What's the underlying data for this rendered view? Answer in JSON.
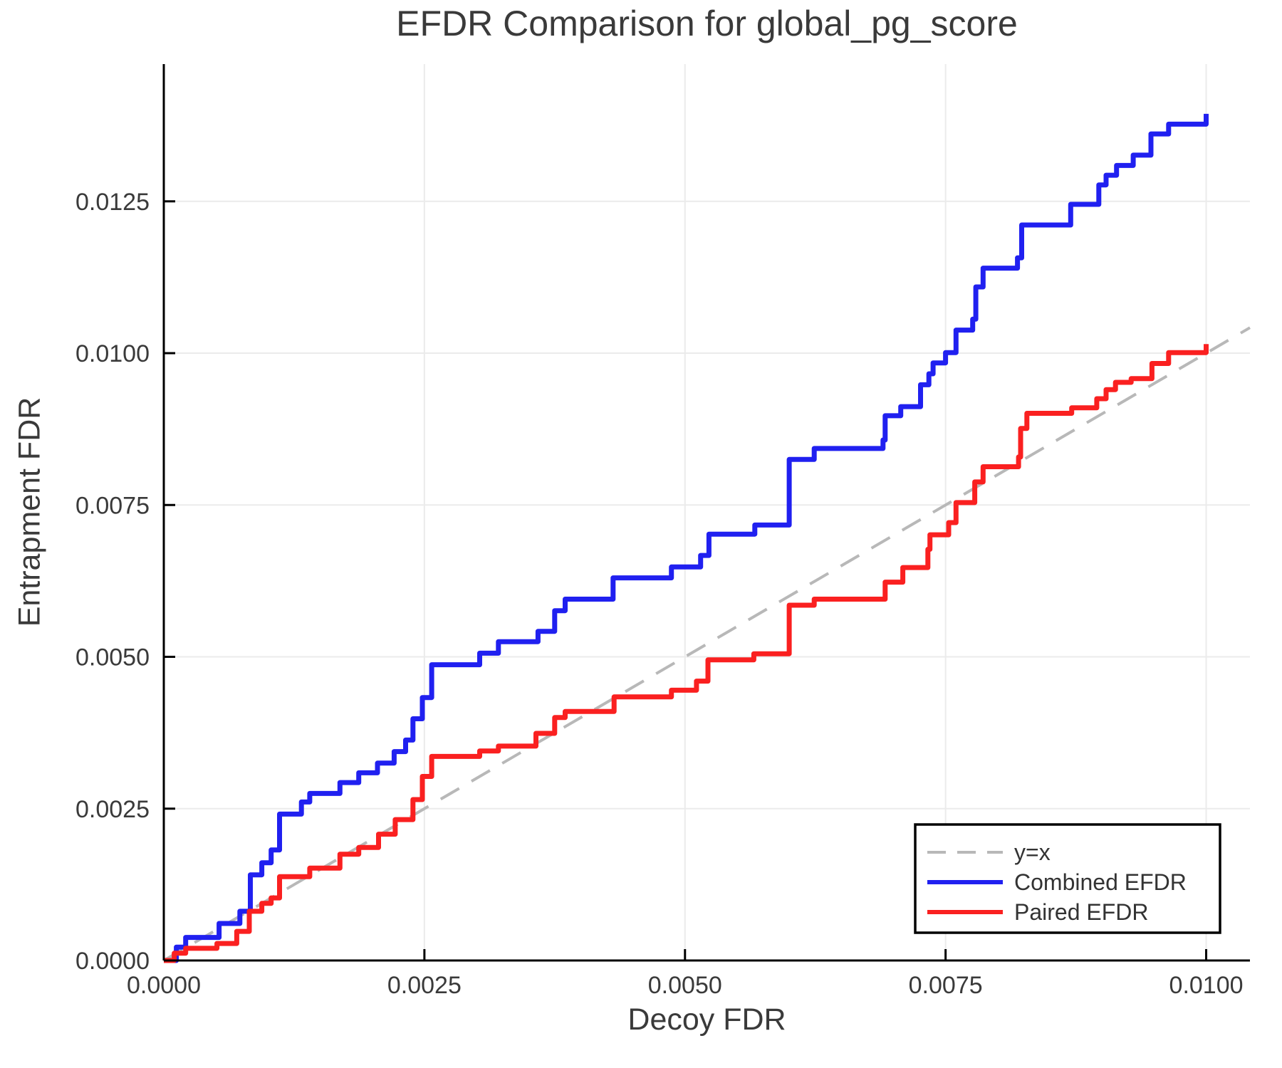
{
  "chart_data": {
    "type": "line",
    "title": "EFDR Comparison for global_pg_score",
    "xlabel": "Decoy FDR",
    "ylabel": "Entrapment FDR",
    "xlim": [
      0,
      0.01042
    ],
    "ylim": [
      0,
      0.01476
    ],
    "grid": true,
    "legend_position": "bottom-right",
    "x_ticks": [
      0.0,
      0.0025,
      0.005,
      0.0075,
      0.01
    ],
    "x_tick_labels": [
      "0.0000",
      "0.0025",
      "0.0050",
      "0.0075",
      "0.0100"
    ],
    "y_ticks": [
      0.0,
      0.0025,
      0.005,
      0.0075,
      0.01,
      0.0125
    ],
    "y_tick_labels": [
      "0.0000",
      "0.0025",
      "0.0050",
      "0.0075",
      "0.0100",
      "0.0125"
    ],
    "colors": {
      "grid": "#ebebeb",
      "axis": "#000000",
      "tick_text": "#3a3a3a",
      "legend_border": "#000000",
      "legend_bg": "#ffffff",
      "legend_text": "#333333"
    },
    "series": [
      {
        "name": "y=x",
        "kind": "diagonal",
        "style": "dashed",
        "color": "#b8b8b8",
        "points": [
          [
            0,
            0
          ],
          [
            0.01042,
            0.01042
          ]
        ]
      },
      {
        "name": "Combined EFDR",
        "kind": "step",
        "style": "solid",
        "color": "#2020f0",
        "points": [
          [
            0,
            0
          ],
          [
            0.00012,
            0.00022
          ],
          [
            0.00021,
            0.00038
          ],
          [
            0.00053,
            0.00061
          ],
          [
            0.00073,
            0.00081
          ],
          [
            0.00083,
            0.00141
          ],
          [
            0.00094,
            0.00161
          ],
          [
            0.00103,
            0.00182
          ],
          [
            0.00111,
            0.00241
          ],
          [
            0.00132,
            0.00261
          ],
          [
            0.0014,
            0.00275
          ],
          [
            0.00169,
            0.00293
          ],
          [
            0.00187,
            0.00309
          ],
          [
            0.00205,
            0.00325
          ],
          [
            0.00221,
            0.00344
          ],
          [
            0.00232,
            0.00363
          ],
          [
            0.00239,
            0.00398
          ],
          [
            0.00248,
            0.00433
          ],
          [
            0.00257,
            0.00487
          ],
          [
            0.00303,
            0.00506
          ],
          [
            0.00321,
            0.00525
          ],
          [
            0.00359,
            0.00542
          ],
          [
            0.00375,
            0.00576
          ],
          [
            0.00385,
            0.00595
          ],
          [
            0.00431,
            0.0063
          ],
          [
            0.00487,
            0.00648
          ],
          [
            0.00515,
            0.00667
          ],
          [
            0.00523,
            0.00702
          ],
          [
            0.00567,
            0.00717
          ],
          [
            0.006,
            0.00825
          ],
          [
            0.00624,
            0.00843
          ],
          [
            0.0069,
            0.00857
          ],
          [
            0.00692,
            0.00897
          ],
          [
            0.00707,
            0.00912
          ],
          [
            0.00726,
            0.00948
          ],
          [
            0.00734,
            0.00966
          ],
          [
            0.00738,
            0.00984
          ],
          [
            0.0075,
            0.01001
          ],
          [
            0.0076,
            0.01038
          ],
          [
            0.00776,
            0.01056
          ],
          [
            0.00779,
            0.01109
          ],
          [
            0.00786,
            0.0114
          ],
          [
            0.00819,
            0.01157
          ],
          [
            0.00823,
            0.01211
          ],
          [
            0.0087,
            0.01245
          ],
          [
            0.00897,
            0.01277
          ],
          [
            0.00904,
            0.01293
          ],
          [
            0.00914,
            0.01309
          ],
          [
            0.0093,
            0.01326
          ],
          [
            0.00947,
            0.01361
          ],
          [
            0.00964,
            0.01377
          ],
          [
            0.01,
            0.01394
          ]
        ]
      },
      {
        "name": "Paired EFDR",
        "kind": "step",
        "style": "solid",
        "color": "#fa2020",
        "points": [
          [
            0,
            0
          ],
          [
            0.0001,
            0.00012
          ],
          [
            0.00021,
            0.0002
          ],
          [
            0.00051,
            0.00028
          ],
          [
            0.0007,
            0.00048
          ],
          [
            0.00082,
            0.00081
          ],
          [
            0.00094,
            0.00094
          ],
          [
            0.00103,
            0.00103
          ],
          [
            0.00111,
            0.00138
          ],
          [
            0.0014,
            0.00152
          ],
          [
            0.00169,
            0.00175
          ],
          [
            0.00187,
            0.00186
          ],
          [
            0.00206,
            0.00208
          ],
          [
            0.00222,
            0.00232
          ],
          [
            0.00239,
            0.00265
          ],
          [
            0.00248,
            0.00303
          ],
          [
            0.00257,
            0.00336
          ],
          [
            0.00303,
            0.00345
          ],
          [
            0.00321,
            0.00353
          ],
          [
            0.00357,
            0.00374
          ],
          [
            0.00375,
            0.004
          ],
          [
            0.00385,
            0.0041
          ],
          [
            0.00432,
            0.00434
          ],
          [
            0.00487,
            0.00445
          ],
          [
            0.00511,
            0.0046
          ],
          [
            0.00522,
            0.00495
          ],
          [
            0.00566,
            0.00505
          ],
          [
            0.006,
            0.00585
          ],
          [
            0.00624,
            0.00595
          ],
          [
            0.00692,
            0.00623
          ],
          [
            0.00709,
            0.00647
          ],
          [
            0.00733,
            0.00677
          ],
          [
            0.00735,
            0.00701
          ],
          [
            0.00753,
            0.00721
          ],
          [
            0.0076,
            0.00754
          ],
          [
            0.00778,
            0.00788
          ],
          [
            0.00786,
            0.00813
          ],
          [
            0.0082,
            0.00829
          ],
          [
            0.00822,
            0.00876
          ],
          [
            0.00828,
            0.00901
          ],
          [
            0.00871,
            0.0091
          ],
          [
            0.00895,
            0.00925
          ],
          [
            0.00904,
            0.0094
          ],
          [
            0.00913,
            0.00952
          ],
          [
            0.00928,
            0.00958
          ],
          [
            0.00948,
            0.00983
          ],
          [
            0.00964,
            0.01001
          ],
          [
            0.01,
            0.01015
          ]
        ]
      }
    ],
    "legend": {
      "entries": [
        "y=x",
        "Combined EFDR",
        "Paired EFDR"
      ]
    }
  }
}
